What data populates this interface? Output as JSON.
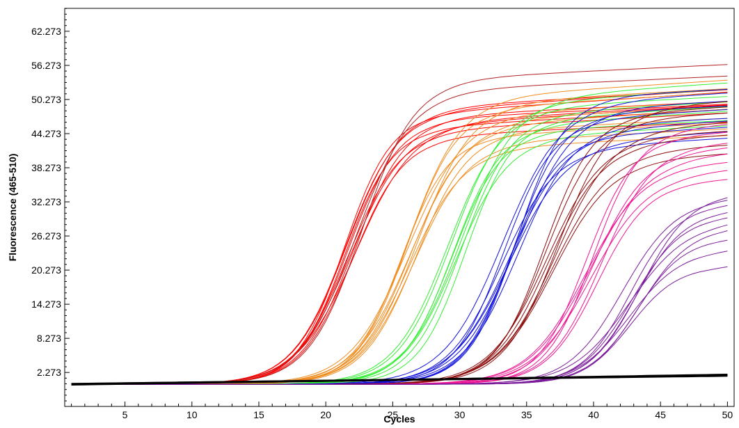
{
  "chart_data": {
    "type": "line",
    "title": "",
    "xlabel": "Cycles",
    "ylabel": "Fluorescence (465-510)",
    "xlim": [
      0.5,
      50.5
    ],
    "ylim": [
      -3.7,
      66.3
    ],
    "x_ticks": [
      5,
      10,
      15,
      20,
      25,
      30,
      35,
      40,
      45,
      50
    ],
    "y_ticks": [
      "2.273",
      "8.273",
      "14.273",
      "20.273",
      "26.273",
      "32.273",
      "38.273",
      "44.273",
      "50.273",
      "56.273",
      "62.273"
    ],
    "grid": false,
    "legend": "none",
    "baseline": 0.2,
    "series": [
      {
        "color": "#ff0000",
        "midpoint": 22.0,
        "plateaus": [
          44,
          45,
          45.5,
          46,
          46.5,
          47,
          47.5,
          48,
          48.5,
          49
        ],
        "count": 10
      },
      {
        "color": "#b22222",
        "midpoint": 22.0,
        "plateaus": [
          52,
          54
        ],
        "count": 2
      },
      {
        "color": "#f08c1e",
        "midpoint": 26.2,
        "plateaus": [
          42,
          43,
          44,
          45,
          46,
          47,
          48,
          49,
          50,
          51
        ],
        "count": 10
      },
      {
        "color": "#33ee33",
        "midpoint": 29.8,
        "plateaus": [
          44,
          45,
          46,
          47,
          48,
          49,
          50,
          51
        ],
        "count": 8
      },
      {
        "color": "#1010dd",
        "midpoint": 33.8,
        "plateaus": [
          42,
          43,
          44,
          45,
          46,
          47,
          48,
          49,
          50,
          51
        ],
        "count": 10
      },
      {
        "color": "#8b0a0a",
        "midpoint": 37.0,
        "plateaus": [
          40,
          41.5,
          43,
          44,
          45.5,
          47,
          48,
          49
        ],
        "count": 8
      },
      {
        "color": "#ee1493",
        "midpoint": 40.0,
        "plateaus": [
          36,
          37.5,
          39,
          40.5,
          41.5,
          42.5,
          44,
          45.5
        ],
        "count": 8
      },
      {
        "color": "#7a1a9a",
        "midpoint": 42.8,
        "plateaus": [
          21,
          24,
          26,
          28,
          29,
          30,
          31,
          32,
          33,
          34
        ],
        "count": 10
      },
      {
        "color": "#000000",
        "type": "negative",
        "start": 0.2,
        "end": 1.8,
        "count": 12
      }
    ]
  }
}
